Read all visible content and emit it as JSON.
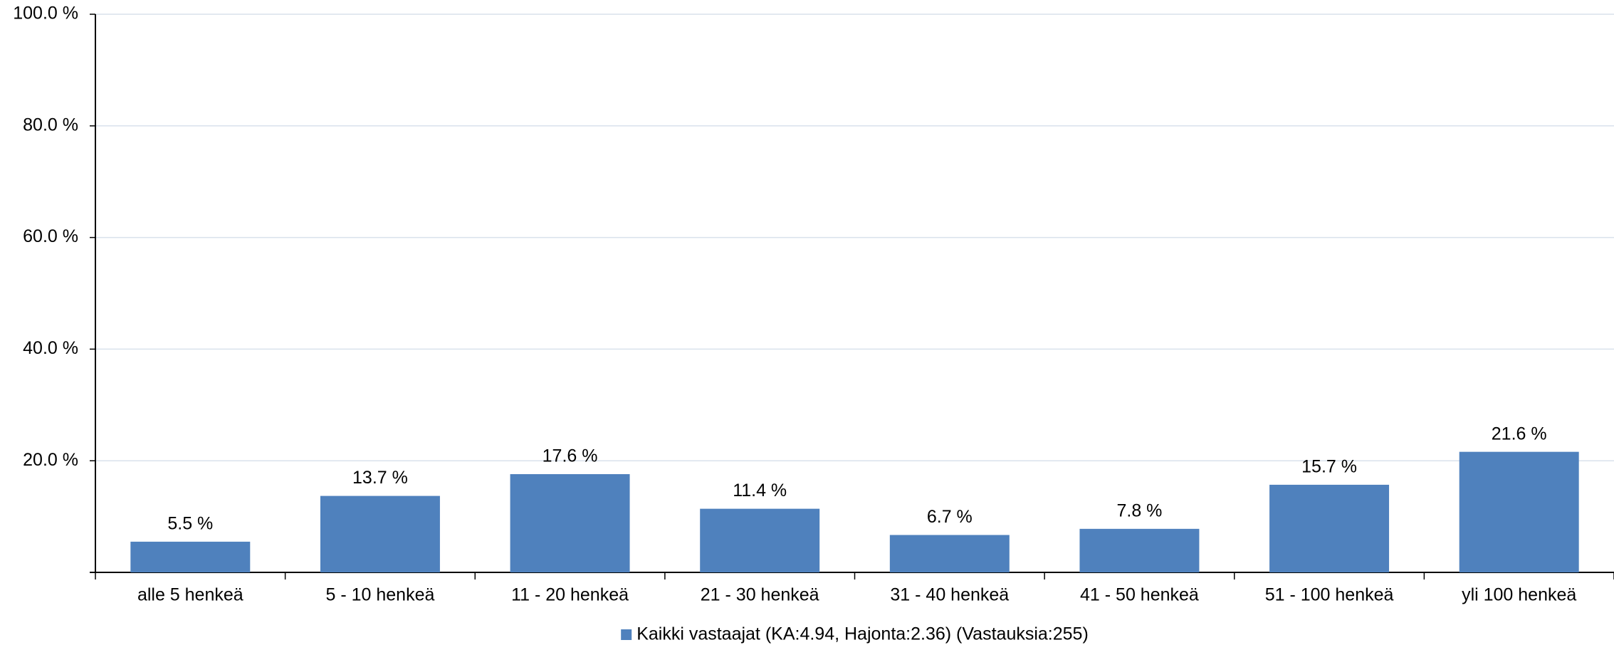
{
  "chart_data": {
    "type": "bar",
    "categories": [
      "alle 5 henkeä",
      "5 - 10 henkeä",
      "11 - 20 henkeä",
      "21 - 30 henkeä",
      "31 - 40 henkeä",
      "41 - 50 henkeä",
      "51 - 100 henkeä",
      "yli 100 henkeä"
    ],
    "series": [
      {
        "name": "Kaikki vastaajat (KA:4.94, Hajonta:2.36) (Vastauksia:255)",
        "color": "#4f81bd",
        "values": [
          5.5,
          13.7,
          17.6,
          11.4,
          6.7,
          7.8,
          15.7,
          21.6
        ],
        "value_labels": [
          "5.5 %",
          "13.7 %",
          "17.6 %",
          "11.4 %",
          "6.7 %",
          "7.8 %",
          "15.7 %",
          "21.6 %"
        ]
      }
    ],
    "ylim": [
      0,
      100
    ],
    "yticks": [
      {
        "value": 20,
        "label": "20.0 %"
      },
      {
        "value": 40,
        "label": "40.0 %"
      },
      {
        "value": 60,
        "label": "60.0 %"
      },
      {
        "value": 80,
        "label": "80.0 %"
      },
      {
        "value": 100,
        "label": "100.0 %"
      }
    ],
    "grid": true,
    "legend": "bottom"
  }
}
